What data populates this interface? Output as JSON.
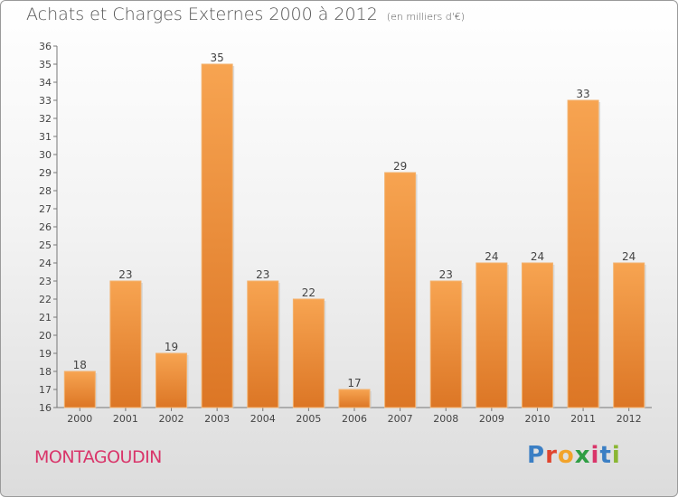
{
  "header": {
    "title": "Achats et Charges Externes 2000 à 2012",
    "unit": "(en milliers d'€)"
  },
  "footer": {
    "location": "MONTAGOUDIN",
    "brand": "Proxiti"
  },
  "colors": {
    "bar_light": "#f6a14d",
    "bar_dark": "#dd7726",
    "location_text": "#d9356a"
  },
  "chart_data": {
    "type": "bar",
    "title": "Achats et Charges Externes 2000 à 2012",
    "subtitle": "(en milliers d'€)",
    "categories": [
      "2000",
      "2001",
      "2002",
      "2003",
      "2004",
      "2005",
      "2006",
      "2007",
      "2008",
      "2009",
      "2010",
      "2011",
      "2012"
    ],
    "values": [
      18,
      23,
      19,
      35,
      23,
      22,
      17,
      29,
      23,
      24,
      24,
      33,
      24
    ],
    "ylim": [
      16,
      36
    ],
    "yticks": [
      16,
      17,
      18,
      19,
      20,
      21,
      22,
      23,
      24,
      25,
      26,
      27,
      28,
      29,
      30,
      31,
      32,
      33,
      34,
      35,
      36
    ],
    "grid": false,
    "legend": "none"
  }
}
